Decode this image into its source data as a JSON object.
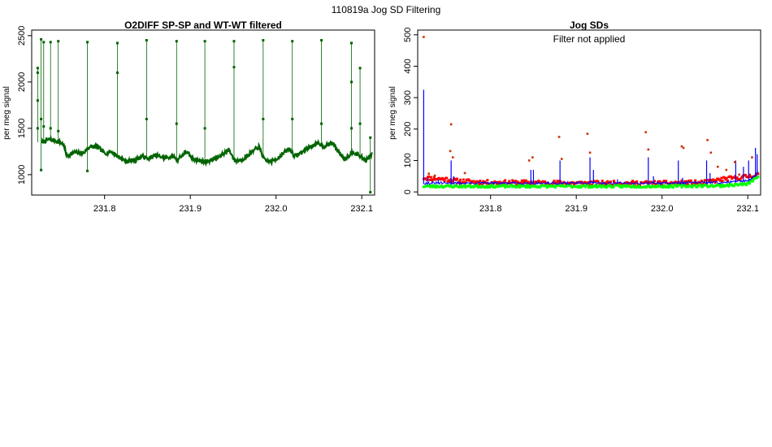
{
  "suptitle": "110819a   Jog SD Filtering",
  "chart_data": [
    {
      "type": "scatter",
      "title": "O2DIFF SP-SP and WT-WT filtered",
      "xlabel": "",
      "ylabel": "per meg signal",
      "xlim": [
        231.715,
        232.115
      ],
      "ylim": [
        780,
        2560
      ],
      "xticks": [
        231.8,
        231.9,
        232.0,
        232.1
      ],
      "xtick_labels": [
        "231.8",
        "231.9",
        "232.0",
        "232.1"
      ],
      "yticks": [
        1000,
        1500,
        2000,
        2500
      ],
      "ytick_labels": [
        "1000",
        "1500",
        "2000",
        "2500"
      ],
      "grid": false,
      "color": "#006400",
      "baseline": [
        [
          231.727,
          1350
        ],
        [
          231.735,
          1380
        ],
        [
          231.745,
          1360
        ],
        [
          231.752,
          1330
        ],
        [
          231.756,
          1200
        ],
        [
          231.765,
          1240
        ],
        [
          231.775,
          1230
        ],
        [
          231.782,
          1300
        ],
        [
          231.792,
          1300
        ],
        [
          231.8,
          1230
        ],
        [
          231.808,
          1250
        ],
        [
          231.815,
          1200
        ],
        [
          231.825,
          1140
        ],
        [
          231.835,
          1160
        ],
        [
          231.845,
          1200
        ],
        [
          231.85,
          1170
        ],
        [
          231.86,
          1210
        ],
        [
          231.87,
          1180
        ],
        [
          231.88,
          1200
        ],
        [
          231.885,
          1160
        ],
        [
          231.895,
          1250
        ],
        [
          231.902,
          1180
        ],
        [
          231.91,
          1150
        ],
        [
          231.918,
          1140
        ],
        [
          231.925,
          1160
        ],
        [
          231.935,
          1200
        ],
        [
          231.945,
          1270
        ],
        [
          231.952,
          1150
        ],
        [
          231.96,
          1160
        ],
        [
          231.97,
          1230
        ],
        [
          231.98,
          1300
        ],
        [
          231.987,
          1150
        ],
        [
          231.995,
          1140
        ],
        [
          232.005,
          1200
        ],
        [
          232.015,
          1280
        ],
        [
          232.022,
          1200
        ],
        [
          232.03,
          1240
        ],
        [
          232.04,
          1300
        ],
        [
          232.05,
          1340
        ],
        [
          232.057,
          1300
        ],
        [
          232.065,
          1350
        ],
        [
          232.072,
          1260
        ],
        [
          232.08,
          1170
        ],
        [
          232.09,
          1250
        ],
        [
          232.098,
          1200
        ],
        [
          232.105,
          1150
        ],
        [
          232.112,
          1220
        ]
      ],
      "spikes": [
        {
          "x": 231.722,
          "values": [
            2150,
            2100,
            1800,
            1500
          ]
        },
        {
          "x": 231.726,
          "values": [
            2460,
            1600,
            1050
          ]
        },
        {
          "x": 231.729,
          "values": [
            2430,
            1520
          ]
        },
        {
          "x": 231.737,
          "values": [
            2430,
            1500
          ]
        },
        {
          "x": 231.746,
          "values": [
            2440,
            1470
          ]
        },
        {
          "x": 231.78,
          "values": [
            2430,
            1040
          ]
        },
        {
          "x": 231.815,
          "values": [
            2420,
            2100
          ]
        },
        {
          "x": 231.849,
          "values": [
            2450,
            1600
          ]
        },
        {
          "x": 231.884,
          "values": [
            2440,
            1550
          ]
        },
        {
          "x": 231.917,
          "values": [
            2440,
            1500
          ]
        },
        {
          "x": 231.951,
          "values": [
            2440,
            2160
          ]
        },
        {
          "x": 231.985,
          "values": [
            2450,
            1600
          ]
        },
        {
          "x": 232.019,
          "values": [
            2440,
            1600
          ]
        },
        {
          "x": 232.053,
          "values": [
            2450,
            1550
          ]
        },
        {
          "x": 232.088,
          "values": [
            2420,
            2000,
            1500
          ]
        },
        {
          "x": 232.098,
          "values": [
            2150,
            1550
          ]
        },
        {
          "x": 232.11,
          "values": [
            1400,
            810
          ]
        }
      ]
    },
    {
      "type": "line",
      "title": "Jog SDs",
      "annotation": "Filter not applied",
      "xlabel": "",
      "ylabel": "per meg signal",
      "xlim": [
        231.715,
        232.115
      ],
      "ylim": [
        -10,
        515
      ],
      "xticks": [
        231.8,
        231.9,
        232.0,
        232.1
      ],
      "xtick_labels": [
        "231.8",
        "231.9",
        "232.0",
        "232.1"
      ],
      "yticks": [
        0,
        100,
        200,
        300,
        400,
        500
      ],
      "ytick_labels": [
        "0",
        "100",
        "200",
        "300",
        "400",
        "500"
      ],
      "grid": false,
      "colors": {
        "red_series": "#ff0000",
        "blue_series": "#0000ff",
        "green_series": "#00ff00",
        "outlier_points": "#cc3300"
      },
      "red_band": [
        [
          231.722,
          45
        ],
        [
          231.75,
          40
        ],
        [
          231.76,
          35
        ],
        [
          231.8,
          30
        ],
        [
          231.85,
          30
        ],
        [
          231.9,
          28
        ],
        [
          231.95,
          28
        ],
        [
          232.0,
          28
        ],
        [
          232.05,
          30
        ],
        [
          232.07,
          40
        ],
        [
          232.09,
          45
        ],
        [
          232.112,
          55
        ]
      ],
      "green_band": [
        [
          231.722,
          18
        ],
        [
          231.8,
          18
        ],
        [
          231.9,
          18
        ],
        [
          232.0,
          18
        ],
        [
          232.07,
          20
        ],
        [
          232.1,
          25
        ],
        [
          232.112,
          50
        ]
      ],
      "blue_spikes": [
        {
          "x": 231.722,
          "top": 325
        },
        {
          "x": 231.727,
          "top": 45
        },
        {
          "x": 231.732,
          "top": 35
        },
        {
          "x": 231.739,
          "top": 40
        },
        {
          "x": 231.754,
          "top": 100
        },
        {
          "x": 231.757,
          "top": 50
        },
        {
          "x": 231.847,
          "top": 70
        },
        {
          "x": 231.85,
          "top": 70
        },
        {
          "x": 231.881,
          "top": 100
        },
        {
          "x": 231.916,
          "top": 110
        },
        {
          "x": 231.92,
          "top": 70
        },
        {
          "x": 231.948,
          "top": 40
        },
        {
          "x": 231.984,
          "top": 110
        },
        {
          "x": 231.99,
          "top": 50
        },
        {
          "x": 232.019,
          "top": 100
        },
        {
          "x": 232.024,
          "top": 45
        },
        {
          "x": 232.052,
          "top": 100
        },
        {
          "x": 232.056,
          "top": 60
        },
        {
          "x": 232.086,
          "top": 100
        },
        {
          "x": 232.095,
          "top": 80
        },
        {
          "x": 232.101,
          "top": 100
        },
        {
          "x": 232.109,
          "top": 140
        },
        {
          "x": 232.111,
          "top": 120
        }
      ],
      "outliers": [
        [
          231.722,
          493
        ],
        [
          231.728,
          58
        ],
        [
          231.735,
          52
        ],
        [
          231.754,
          215
        ],
        [
          231.753,
          130
        ],
        [
          231.756,
          110
        ],
        [
          231.77,
          60
        ],
        [
          231.845,
          100
        ],
        [
          231.849,
          110
        ],
        [
          231.88,
          175
        ],
        [
          231.883,
          105
        ],
        [
          231.913,
          185
        ],
        [
          231.916,
          125
        ],
        [
          231.981,
          190
        ],
        [
          231.984,
          135
        ],
        [
          232.023,
          145
        ],
        [
          232.025,
          140
        ],
        [
          232.053,
          165
        ],
        [
          232.057,
          125
        ],
        [
          232.065,
          80
        ],
        [
          232.075,
          70
        ],
        [
          232.085,
          95
        ],
        [
          232.09,
          55
        ],
        [
          232.105,
          110
        ]
      ]
    }
  ]
}
